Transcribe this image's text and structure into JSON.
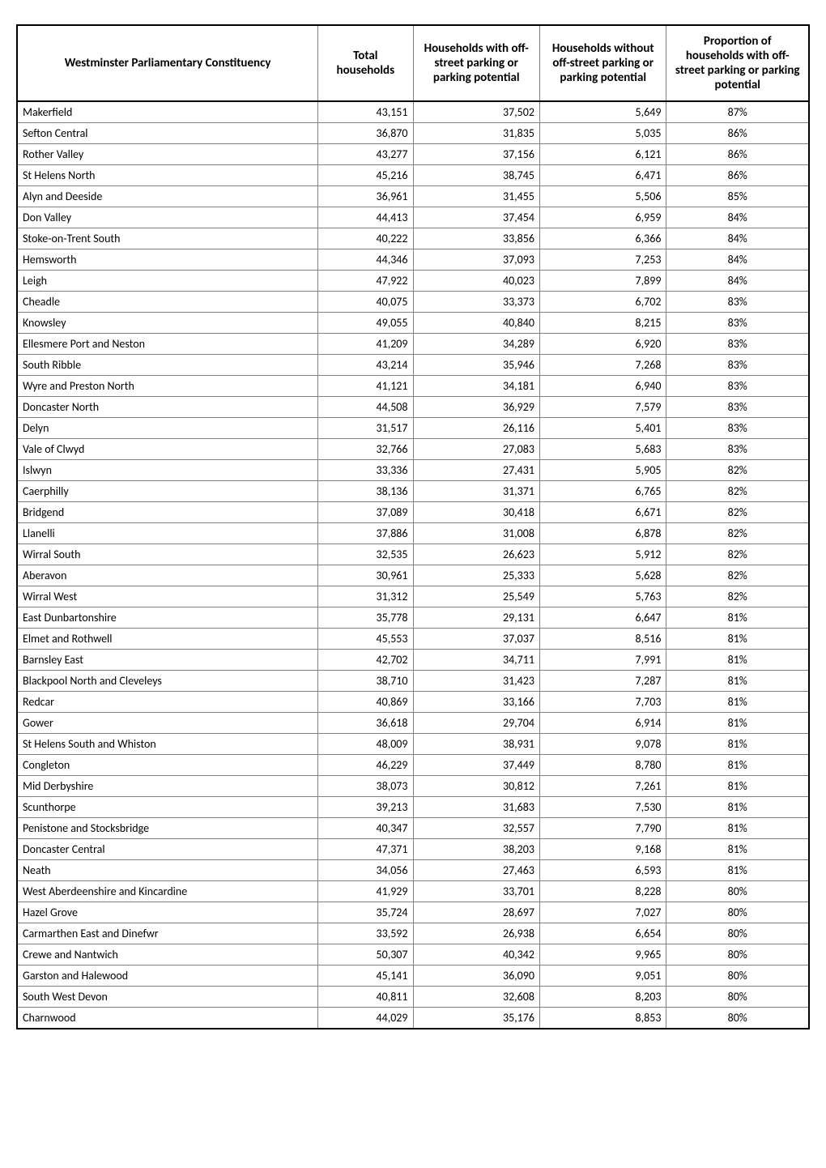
{
  "table": {
    "columns": [
      "Westminster Parliamentary Constituency",
      "Total households",
      "Households with off-street parking or parking potential",
      "Households without off-street parking or parking potential",
      "Proportion of households with off-street parking or parking potential"
    ],
    "rows": [
      [
        "Makerfield",
        "43,151",
        "37,502",
        "5,649",
        "87%"
      ],
      [
        "Sefton Central",
        "36,870",
        "31,835",
        "5,035",
        "86%"
      ],
      [
        "Rother Valley",
        "43,277",
        "37,156",
        "6,121",
        "86%"
      ],
      [
        "St Helens North",
        "45,216",
        "38,745",
        "6,471",
        "86%"
      ],
      [
        "Alyn and Deeside",
        "36,961",
        "31,455",
        "5,506",
        "85%"
      ],
      [
        "Don Valley",
        "44,413",
        "37,454",
        "6,959",
        "84%"
      ],
      [
        "Stoke-on-Trent South",
        "40,222",
        "33,856",
        "6,366",
        "84%"
      ],
      [
        "Hemsworth",
        "44,346",
        "37,093",
        "7,253",
        "84%"
      ],
      [
        "Leigh",
        "47,922",
        "40,023",
        "7,899",
        "84%"
      ],
      [
        "Cheadle",
        "40,075",
        "33,373",
        "6,702",
        "83%"
      ],
      [
        "Knowsley",
        "49,055",
        "40,840",
        "8,215",
        "83%"
      ],
      [
        "Ellesmere Port and Neston",
        "41,209",
        "34,289",
        "6,920",
        "83%"
      ],
      [
        "South Ribble",
        "43,214",
        "35,946",
        "7,268",
        "83%"
      ],
      [
        "Wyre and Preston North",
        "41,121",
        "34,181",
        "6,940",
        "83%"
      ],
      [
        "Doncaster North",
        "44,508",
        "36,929",
        "7,579",
        "83%"
      ],
      [
        "Delyn",
        "31,517",
        "26,116",
        "5,401",
        "83%"
      ],
      [
        "Vale of Clwyd",
        "32,766",
        "27,083",
        "5,683",
        "83%"
      ],
      [
        "Islwyn",
        "33,336",
        "27,431",
        "5,905",
        "82%"
      ],
      [
        "Caerphilly",
        "38,136",
        "31,371",
        "6,765",
        "82%"
      ],
      [
        "Bridgend",
        "37,089",
        "30,418",
        "6,671",
        "82%"
      ],
      [
        "Llanelli",
        "37,886",
        "31,008",
        "6,878",
        "82%"
      ],
      [
        "Wirral South",
        "32,535",
        "26,623",
        "5,912",
        "82%"
      ],
      [
        "Aberavon",
        "30,961",
        "25,333",
        "5,628",
        "82%"
      ],
      [
        "Wirral West",
        "31,312",
        "25,549",
        "5,763",
        "82%"
      ],
      [
        "East Dunbartonshire",
        "35,778",
        "29,131",
        "6,647",
        "81%"
      ],
      [
        "Elmet and Rothwell",
        "45,553",
        "37,037",
        "8,516",
        "81%"
      ],
      [
        "Barnsley East",
        "42,702",
        "34,711",
        "7,991",
        "81%"
      ],
      [
        "Blackpool North and Cleveleys",
        "38,710",
        "31,423",
        "7,287",
        "81%"
      ],
      [
        "Redcar",
        "40,869",
        "33,166",
        "7,703",
        "81%"
      ],
      [
        "Gower",
        "36,618",
        "29,704",
        "6,914",
        "81%"
      ],
      [
        "St Helens South and Whiston",
        "48,009",
        "38,931",
        "9,078",
        "81%"
      ],
      [
        "Congleton",
        "46,229",
        "37,449",
        "8,780",
        "81%"
      ],
      [
        "Mid Derbyshire",
        "38,073",
        "30,812",
        "7,261",
        "81%"
      ],
      [
        "Scunthorpe",
        "39,213",
        "31,683",
        "7,530",
        "81%"
      ],
      [
        "Penistone and Stocksbridge",
        "40,347",
        "32,557",
        "7,790",
        "81%"
      ],
      [
        "Doncaster Central",
        "47,371",
        "38,203",
        "9,168",
        "81%"
      ],
      [
        "Neath",
        "34,056",
        "27,463",
        "6,593",
        "81%"
      ],
      [
        "West Aberdeenshire and Kincardine",
        "41,929",
        "33,701",
        "8,228",
        "80%"
      ],
      [
        "Hazel Grove",
        "35,724",
        "28,697",
        "7,027",
        "80%"
      ],
      [
        "Carmarthen East and Dinefwr",
        "33,592",
        "26,938",
        "6,654",
        "80%"
      ],
      [
        "Crewe and Nantwich",
        "50,307",
        "40,342",
        "9,965",
        "80%"
      ],
      [
        "Garston and Halewood",
        "45,141",
        "36,090",
        "9,051",
        "80%"
      ],
      [
        "South West Devon",
        "40,811",
        "32,608",
        "8,203",
        "80%"
      ],
      [
        "Charnwood",
        "44,029",
        "35,176",
        "8,853",
        "80%"
      ]
    ],
    "styling": {
      "border_color": "#808080",
      "outer_border_color": "#000000",
      "header_fontsize": 15,
      "cell_fontsize": 14,
      "font_family": "Calibri",
      "background_color": "#ffffff",
      "column_widths_pct": [
        38,
        12,
        16,
        16,
        18
      ],
      "column_alignments": [
        "left",
        "right",
        "right",
        "right",
        "center"
      ]
    }
  }
}
